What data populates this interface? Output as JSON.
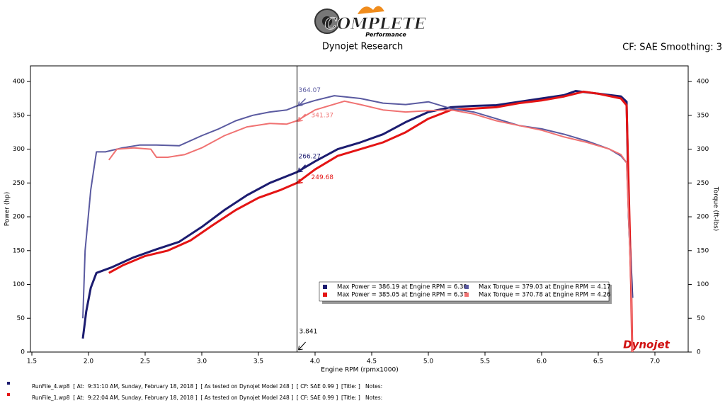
{
  "header": {
    "logo_main": "COMPLETE",
    "logo_sub": "Performance",
    "title": "Dynojet Research",
    "settings": "CF: SAE Smoothing: 3"
  },
  "chart_data": {
    "type": "line",
    "xlabel": "Engine RPM (rpmx1000)",
    "ylabel": "Power (hp)",
    "y2label": "Torque (ft-lbs)",
    "xlim": [
      1.5,
      7.3
    ],
    "ylim": [
      0,
      420
    ],
    "y2lim": [
      0,
      420
    ],
    "xticks": [
      1.5,
      {
        "value": 2,
        "label": "2.0"
      },
      2.5,
      {
        "value": 3,
        "label": "3.0"
      },
      3.5,
      {
        "value": 4,
        "label": "4.0"
      },
      4.5,
      {
        "value": 5,
        "label": "5.0"
      },
      5.5,
      {
        "value": 6,
        "label": "6.0"
      },
      6.5,
      {
        "value": 7,
        "label": "7.0"
      }
    ],
    "yticks": [
      0,
      50,
      100,
      150,
      200,
      250,
      300,
      350,
      400
    ],
    "y2ticks": [
      0,
      50,
      100,
      150,
      200,
      250,
      300,
      350,
      400
    ],
    "cursor": {
      "x": 3.841
    },
    "watermark": "Dynojet",
    "series": [
      {
        "name": "Max Power = 386.19 at Engine RPM = 6.30",
        "color": "#1c1c70",
        "width": 3,
        "cursor_value": 266.27,
        "x": [
          1.95,
          1.98,
          2.02,
          2.07,
          2.2,
          2.4,
          2.6,
          2.8,
          3.0,
          3.2,
          3.4,
          3.6,
          3.84,
          4.0,
          4.2,
          4.4,
          4.6,
          4.8,
          5.0,
          5.2,
          5.4,
          5.6,
          5.8,
          6.0,
          6.2,
          6.3,
          6.5,
          6.7,
          6.75,
          6.77,
          6.8
        ],
        "values": [
          20,
          60,
          95,
          117,
          125,
          140,
          152,
          163,
          185,
          210,
          232,
          250,
          266,
          282,
          300,
          310,
          322,
          340,
          355,
          362,
          364,
          365,
          370,
          375,
          380,
          386,
          382,
          378,
          370,
          200,
          80
        ]
      },
      {
        "name": "Max Power = 385.05 at Engine RPM = 6.37",
        "color": "#e41414",
        "width": 3,
        "cursor_value": 249.68,
        "x": [
          2.18,
          2.3,
          2.5,
          2.7,
          2.9,
          3.1,
          3.3,
          3.5,
          3.7,
          3.84,
          4.0,
          4.2,
          4.4,
          4.6,
          4.8,
          5.0,
          5.2,
          5.4,
          5.6,
          5.8,
          6.0,
          6.2,
          6.37,
          6.5,
          6.7,
          6.75,
          6.79,
          6.8
        ],
        "values": [
          117,
          128,
          142,
          150,
          165,
          188,
          210,
          228,
          240,
          250,
          270,
          290,
          300,
          310,
          325,
          345,
          358,
          360,
          362,
          368,
          372,
          378,
          385,
          382,
          375,
          365,
          100,
          0
        ]
      },
      {
        "name": "Max Torque = 379.03 at Engine RPM = 4.17",
        "color": "#5a5aa0",
        "width": 2,
        "axis": "y2",
        "cursor_value": 364.07,
        "x": [
          1.95,
          1.97,
          2.02,
          2.07,
          2.15,
          2.3,
          2.45,
          2.6,
          2.8,
          3.0,
          3.15,
          3.3,
          3.45,
          3.6,
          3.75,
          3.84,
          4.0,
          4.17,
          4.4,
          4.6,
          4.8,
          5.0,
          5.2,
          5.4,
          5.6,
          5.8,
          6.0,
          6.2,
          6.4,
          6.6,
          6.7,
          6.75,
          6.78,
          6.8
        ],
        "values": [
          50,
          150,
          240,
          296,
          296,
          302,
          306,
          306,
          305,
          320,
          330,
          342,
          350,
          355,
          358,
          364,
          372,
          379,
          375,
          368,
          366,
          370,
          360,
          355,
          345,
          335,
          330,
          322,
          312,
          300,
          290,
          280,
          150,
          80
        ]
      },
      {
        "name": "Max Torque = 370.78 at Engine RPM = 4.26",
        "color": "#f07272",
        "width": 2,
        "axis": "y2",
        "cursor_value": 341.37,
        "x": [
          2.18,
          2.25,
          2.4,
          2.55,
          2.6,
          2.7,
          2.85,
          3.0,
          3.2,
          3.4,
          3.6,
          3.75,
          3.84,
          4.0,
          4.26,
          4.4,
          4.6,
          4.8,
          5.0,
          5.2,
          5.4,
          5.6,
          5.8,
          6.0,
          6.2,
          6.4,
          6.6,
          6.7,
          6.75,
          6.79,
          6.8
        ],
        "values": [
          284,
          300,
          302,
          300,
          288,
          288,
          292,
          302,
          320,
          333,
          338,
          337,
          342,
          358,
          371,
          366,
          358,
          355,
          357,
          358,
          352,
          342,
          335,
          328,
          318,
          310,
          300,
          292,
          280,
          100,
          0
        ]
      }
    ]
  },
  "footer": {
    "runs": [
      {
        "color": "#1c1c70",
        "text": "RunFile_4.wp8  [ At:  9:31:10 AM, Sunday, February 18, 2018 ]  [ As tested on Dynojet Model 248 ]  [ CF: SAE 0.99 ]  [Title: ]   Notes:"
      },
      {
        "color": "#e41414",
        "text": "RunFile_1.wp8  [ At:  9:22:04 AM, Sunday, February 18, 2018 ]  [ As tested on Dynojet Model 248 ]  [ CF: SAE 0.99 ]  [Title: ]   Notes:"
      }
    ]
  }
}
